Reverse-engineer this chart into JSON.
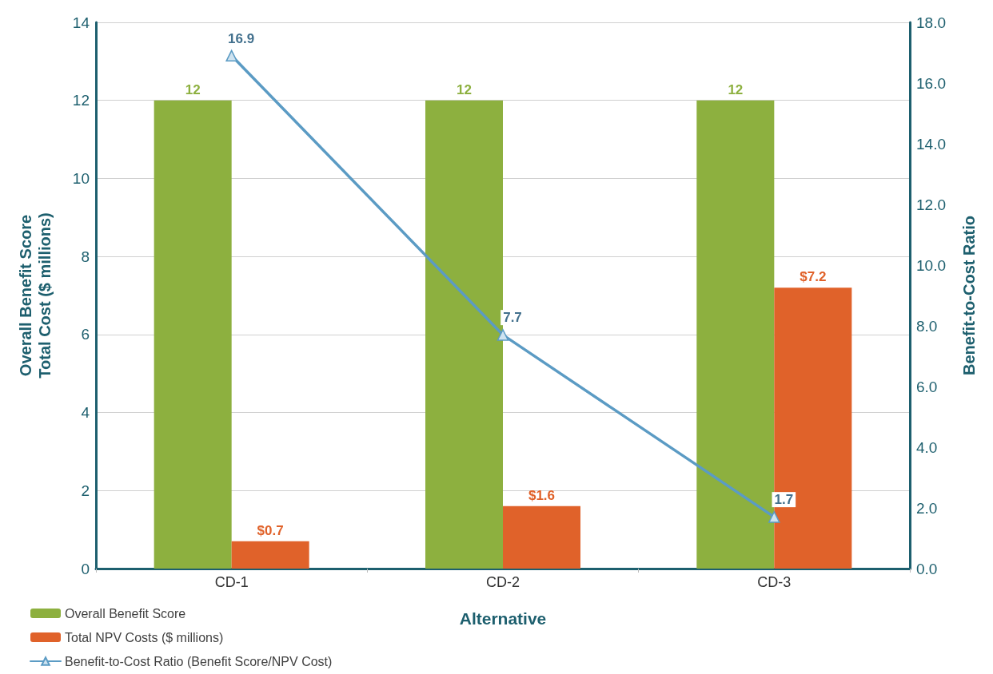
{
  "chart_data": {
    "type": "bar",
    "xlabel": "Alternative",
    "ylabel": "Overall Benefit Score\nTotal Cost ($ millions)",
    "y2label": "Benefit-to-Cost Ratio",
    "categories": [
      "CD-1",
      "CD-2",
      "CD-3"
    ],
    "series": [
      {
        "name": "Overall Benefit Score",
        "color": "#8db03f",
        "values": [
          12,
          12,
          12
        ],
        "value_labels": [
          "12",
          "12",
          "12"
        ]
      },
      {
        "name": "Total NPV Costs ($ millions)",
        "color": "#e0622a",
        "values": [
          0.7,
          1.6,
          7.2
        ],
        "value_labels": [
          "$0.7",
          "$1.6",
          "$7.2"
        ]
      },
      {
        "name": "Benefit-to-Cost Ratio (Benefit Score/NPV Cost)",
        "type": "line",
        "axis": "y2",
        "color": "#5b9bc4",
        "values": [
          16.9,
          7.7,
          1.7
        ],
        "value_labels": [
          "16.9",
          "7.7",
          "1.7"
        ],
        "marker": "triangle",
        "line_style": "solid"
      }
    ],
    "ylim": [
      0,
      14
    ],
    "yticks": [
      0,
      2,
      4,
      6,
      8,
      10,
      12,
      14
    ],
    "y2lim": [
      0,
      18
    ],
    "y2ticks": [
      {
        "value": 0,
        "label": "0.0"
      },
      {
        "value": 2,
        "label": "2.0"
      },
      {
        "value": 4,
        "label": "4.0"
      },
      {
        "value": 6,
        "label": "6.0"
      },
      {
        "value": 8,
        "label": "8.0"
      },
      {
        "value": 10,
        "label": "10.0"
      },
      {
        "value": 12,
        "label": "12.0"
      },
      {
        "value": 14,
        "label": "14.0"
      },
      {
        "value": 16,
        "label": "16.0"
      },
      {
        "value": 18,
        "label": "18.0"
      }
    ],
    "grid": "y",
    "legend": "bottom left"
  }
}
